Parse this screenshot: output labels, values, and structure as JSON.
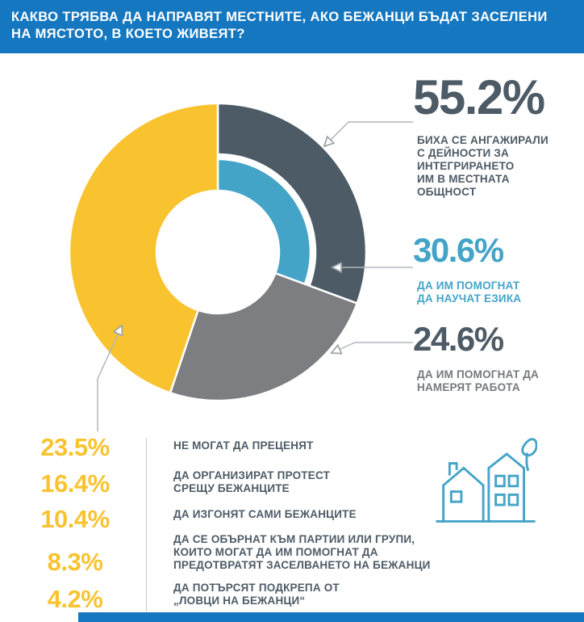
{
  "header": {
    "line1": "КАКВО ТРЯБВА ДА НАПРАВЯТ МЕСТНИТЕ, АКО БЕЖАНЦИ БЪДАТ ЗАСЕЛЕНИ",
    "line2": "НА МЯСТОТО, В КОЕТО ЖИВЕЯТ?"
  },
  "colors": {
    "header_blue": "#1577c0",
    "dark_slate": "#4d5b66",
    "teal": "#44a4c8",
    "gray_segment": "#7c7e81",
    "yellow": "#f9c32f",
    "callout_line": "#b2b7ba"
  },
  "chart_data": {
    "type": "donut",
    "title": "КАКВО ТРЯБВА ДА НАПРАВЯТ МЕСТНИТЕ, АКО БЕЖАНЦИ БЪДАТ ЗАСЕЛЕНИ НА МЯСТОТО, В КОЕТО ЖИВЕЯТ?",
    "legend_position": "right-and-bottom",
    "segments": [
      {
        "name": "would-engage-in-integration",
        "pct": 55.2,
        "color": "#4d5b66",
        "band": "outer",
        "from_deg": 0,
        "to_deg": 110.2
      },
      {
        "name": "help-learn-language",
        "pct": 30.6,
        "color": "#44a4c8",
        "band": "inner",
        "from_deg": 0,
        "to_deg": 110.2
      },
      {
        "name": "help-find-work",
        "pct": 24.6,
        "color": "#7c7e81",
        "band": "full",
        "from_deg": 110.2,
        "to_deg": 198.7
      },
      {
        "name": "other-answers",
        "pct": 44.8,
        "color": "#f9c32f",
        "band": "full",
        "from_deg": 198.7,
        "to_deg": 360
      }
    ],
    "callouts": [
      {
        "display": "55.2%",
        "value": 55.2,
        "label": "БИХА СЕ АНГАЖИРАЛИ\nС ДЕЙНОСТИ ЗА\nИНТЕГРИРАНЕТО\nИМ В МЕСТНАТА\nОБЩНОСТ",
        "color": "#4d5b66"
      },
      {
        "display": "30.6%",
        "value": 30.6,
        "label": "ДА ИМ ПОМОГНАТ\nДА НАУЧАТ ЕЗИКА",
        "color": "#44a4c8"
      },
      {
        "display": "24.6%",
        "value": 24.6,
        "label": "ДА ИМ ПОМОГНАТ ДА\nНАМЕРЯТ РАБОТА",
        "color": "#75797c"
      }
    ],
    "bottom_list": [
      {
        "display": "23.5%",
        "value": 23.5,
        "label": "НЕ МОГАТ ДА ПРЕЦЕНЯТ"
      },
      {
        "display": "16.4%",
        "value": 16.4,
        "label": "ДА ОРГАНИЗИРАТ ПРОТЕСТ\nСРЕЩУ БЕЖАНЦИТЕ"
      },
      {
        "display": "10.4%",
        "value": 10.4,
        "label": "ДА ИЗГОНЯТ САМИ БЕЖАНЦИТЕ"
      },
      {
        "display": "8.3%",
        "value": 8.3,
        "label": "ДА СЕ ОБЪРНАТ КЪМ ПАРТИИ ИЛИ ГРУПИ,\nКОИТО МОГАТ ДА ИМ ПОМОГНАТ ДА\nПРЕДОТВРАТЯТ ЗАСЕЛВАНЕТО НА БЕЖАНЦИ"
      },
      {
        "display": "4.2%",
        "value": 4.2,
        "label": "ДА ПОТЪРСЯТ ПОДКРЕПА ОТ\n„ЛОВЦИ НА БЕЖАНЦИ“"
      }
    ]
  },
  "icons": {
    "houses": "houses-and-leaf-icon"
  }
}
